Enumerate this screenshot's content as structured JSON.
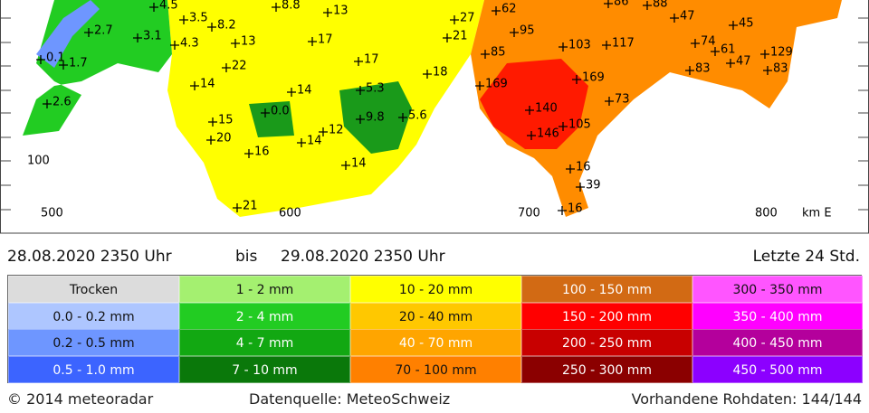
{
  "map": {
    "axis_labels": [
      "500",
      "600",
      "700",
      "800",
      "km E",
      "100"
    ],
    "stations": [
      "4.5",
      "8.8",
      "13",
      "27",
      "62",
      "86",
      "88",
      "47",
      "45",
      "2.7",
      "3.5",
      "8.2",
      "3.1",
      "4.3",
      "13",
      "17",
      "21",
      "95",
      "103",
      "117",
      "74",
      "61",
      "129",
      "0.1",
      "1.7",
      "85",
      "17",
      "22",
      "47",
      "83",
      "83",
      "18",
      "14",
      "14",
      "5.3",
      "169",
      "169",
      "73",
      "2.6",
      "0.0",
      "9.8",
      "5.6",
      "15",
      "140",
      "146",
      "105",
      "12",
      "20",
      "14",
      "16",
      "14",
      "16",
      "39",
      "21",
      "16"
    ]
  },
  "period": {
    "from": "28.08.2020 2350 Uhr",
    "sep": "bis",
    "to": "29.08.2020 2350 Uhr",
    "range": "Letzte 24 Std."
  },
  "legend": {
    "rows": [
      [
        {
          "label": "Trocken",
          "color": "#dcdcdc"
        },
        {
          "label": "1 - 2 mm",
          "color": "#a4f070"
        },
        {
          "label": "10 - 20 mm",
          "color": "#ffff00"
        },
        {
          "label": "100 - 150 mm",
          "color": "#d26a14"
        },
        {
          "label": "300 - 350 mm",
          "color": "#ff55ff"
        }
      ],
      [
        {
          "label": "0.0 - 0.2 mm",
          "color": "#aec6ff"
        },
        {
          "label": "2 - 4 mm",
          "color": "#22cc22"
        },
        {
          "label": "20 - 40 mm",
          "color": "#ffc800"
        },
        {
          "label": "150 - 200 mm",
          "color": "#ff0000"
        },
        {
          "label": "350 - 400 mm",
          "color": "#ff00ff"
        }
      ],
      [
        {
          "label": "0.2 - 0.5 mm",
          "color": "#6e96ff"
        },
        {
          "label": "4 - 7 mm",
          "color": "#12a812"
        },
        {
          "label": "40 - 70 mm",
          "color": "#ffa500"
        },
        {
          "label": "200 - 250 mm",
          "color": "#c80000"
        },
        {
          "label": "400 - 450 mm",
          "color": "#b4009c"
        }
      ],
      [
        {
          "label": "0.5 - 1.0 mm",
          "color": "#3c64ff"
        },
        {
          "label": "7 - 10 mm",
          "color": "#0a780a"
        },
        {
          "label": "70 - 100 mm",
          "color": "#ff8000"
        },
        {
          "label": "250 - 300 mm",
          "color": "#8b0000"
        },
        {
          "label": "450 - 500 mm",
          "color": "#8c00ff"
        }
      ]
    ]
  },
  "footer": {
    "copyright": "© 2014 meteoradar",
    "source": "Datenquelle: MeteoSchweiz",
    "raw": "Vorhandene Rohdaten: 144/144"
  }
}
